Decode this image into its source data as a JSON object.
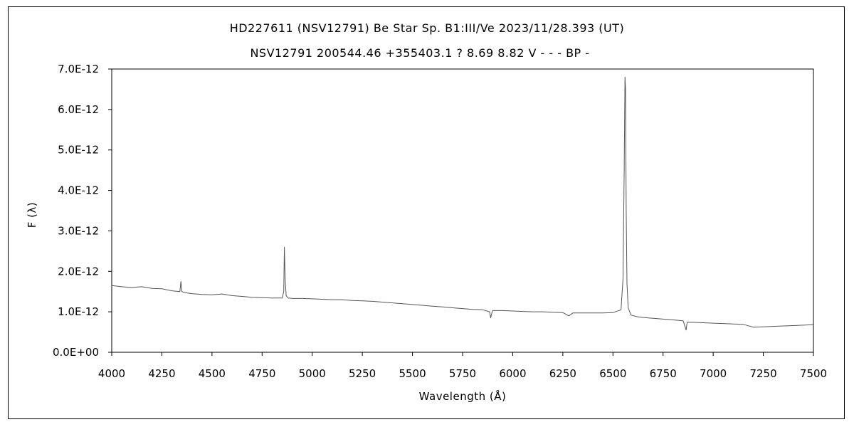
{
  "chart_data": {
    "type": "line",
    "title": "HD227611 (NSV12791)    Be Star    Sp. B1:III/Ve    2023/11/28.393 (UT)",
    "subtitle": "NSV12791 200544.46 +355403.1 ? 8.69 8.82 V - - - BP -",
    "xlabel": "Wavelength (Å)",
    "ylabel": "F (λ)",
    "xlim": [
      4000,
      7500
    ],
    "ylim": [
      0,
      7e-12
    ],
    "x_ticks": [
      "4000",
      "4250",
      "4500",
      "4750",
      "5000",
      "5250",
      "5500",
      "5750",
      "6000",
      "6250",
      "6500",
      "6750",
      "7000",
      "7250",
      "7500"
    ],
    "y_ticks": [
      "0.0E+00",
      "1.0E-12",
      "2.0E-12",
      "3.0E-12",
      "4.0E-12",
      "5.0E-12",
      "6.0E-12",
      "7.0E-12"
    ],
    "grid": false,
    "legend": "none",
    "series": [
      {
        "color": "#555555",
        "x": [
          4000,
          4050,
          4100,
          4150,
          4200,
          4250,
          4300,
          4340,
          4345,
          4350,
          4360,
          4400,
          4450,
          4500,
          4550,
          4600,
          4650,
          4700,
          4750,
          4800,
          4850,
          4858,
          4861,
          4865,
          4870,
          4880,
          4900,
          4950,
          5000,
          5050,
          5100,
          5150,
          5200,
          5250,
          5300,
          5350,
          5400,
          5450,
          5500,
          5550,
          5600,
          5650,
          5700,
          5750,
          5800,
          5850,
          5885,
          5890,
          5895,
          5900,
          5950,
          6000,
          6050,
          6100,
          6150,
          6200,
          6250,
          6280,
          6300,
          6350,
          6400,
          6450,
          6500,
          6540,
          6550,
          6556,
          6560,
          6563,
          6566,
          6570,
          6576,
          6590,
          6620,
          6650,
          6700,
          6750,
          6800,
          6850,
          6865,
          6870,
          6880,
          6900,
          6950,
          7000,
          7050,
          7100,
          7150,
          7200,
          7250,
          7300,
          7350,
          7400,
          7450,
          7500
        ],
        "y": [
          1.65,
          1.62,
          1.6,
          1.62,
          1.58,
          1.57,
          1.52,
          1.5,
          1.75,
          1.5,
          1.48,
          1.45,
          1.43,
          1.42,
          1.44,
          1.4,
          1.38,
          1.36,
          1.35,
          1.34,
          1.34,
          1.5,
          2.6,
          1.8,
          1.4,
          1.34,
          1.33,
          1.33,
          1.32,
          1.31,
          1.3,
          1.3,
          1.28,
          1.27,
          1.26,
          1.24,
          1.22,
          1.2,
          1.18,
          1.16,
          1.14,
          1.12,
          1.1,
          1.08,
          1.06,
          1.05,
          1.0,
          0.85,
          0.95,
          1.03,
          1.03,
          1.02,
          1.01,
          1.0,
          1.0,
          0.99,
          0.98,
          0.9,
          0.97,
          0.97,
          0.97,
          0.97,
          0.98,
          1.05,
          1.8,
          4.5,
          6.8,
          6.5,
          3.5,
          1.7,
          1.1,
          0.92,
          0.88,
          0.86,
          0.84,
          0.82,
          0.8,
          0.78,
          0.55,
          0.74,
          0.74,
          0.74,
          0.73,
          0.72,
          0.71,
          0.7,
          0.69,
          0.62,
          0.63,
          0.64,
          0.65,
          0.66,
          0.67,
          0.68
        ]
      }
    ]
  }
}
